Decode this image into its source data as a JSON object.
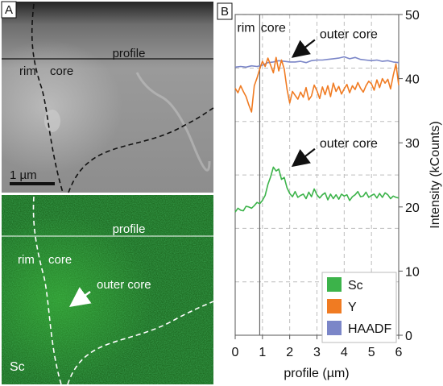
{
  "panel_a": {
    "label": "A",
    "haadf_image": {
      "profile_label": "profile",
      "rim_label": "rim",
      "core_label": "core",
      "scalebar_label": "1 µm"
    },
    "sc_map": {
      "profile_label": "profile",
      "rim_label": "rim",
      "core_label": "core",
      "outer_core_label": "outer core",
      "element_label": "Sc"
    }
  },
  "chart_data": {
    "type": "line",
    "panel_label": "B",
    "xlabel": "profile (µm)",
    "ylabel": "Intensity (kCounts)",
    "xlim": [
      0,
      6
    ],
    "ylim": [
      0,
      50
    ],
    "xticks": [
      0,
      1,
      2,
      3,
      4,
      5,
      6
    ],
    "yticks": [
      0,
      10,
      20,
      30,
      40,
      50
    ],
    "grid": true,
    "legend_position": "bottom-right",
    "annotations": [
      {
        "text": "rim",
        "x": 0.4,
        "y": 47.3
      },
      {
        "text": "core",
        "x": 1.4,
        "y": 47.3
      },
      {
        "text": "outer core",
        "x": 3.1,
        "y": 46.3,
        "arrow_to": [
          2.05,
          43.2
        ]
      },
      {
        "text": "outer core",
        "x": 3.1,
        "y": 29.3,
        "arrow_to": [
          2.05,
          26.2
        ]
      }
    ],
    "rim_core_boundary_x": 0.9,
    "series": [
      {
        "name": "Sc",
        "color": "#3cb34a",
        "x": [
          0,
          0.1,
          0.2,
          0.3,
          0.4,
          0.5,
          0.6,
          0.7,
          0.8,
          0.9,
          1.0,
          1.1,
          1.2,
          1.3,
          1.4,
          1.5,
          1.6,
          1.7,
          1.8,
          1.9,
          2.0,
          2.1,
          2.2,
          2.3,
          2.4,
          2.5,
          2.6,
          2.7,
          2.8,
          2.9,
          3.0,
          3.1,
          3.2,
          3.3,
          3.4,
          3.5,
          3.6,
          3.7,
          3.8,
          3.9,
          4.0,
          4.1,
          4.2,
          4.3,
          4.4,
          4.5,
          4.6,
          4.7,
          4.8,
          4.9,
          5.0,
          5.1,
          5.2,
          5.3,
          5.4,
          5.5,
          5.6,
          5.7,
          5.8,
          5.9,
          6.0
        ],
        "y": [
          19.2,
          19.8,
          19.5,
          19.4,
          20.1,
          20.0,
          19.8,
          20.2,
          20.7,
          20.5,
          21.0,
          21.8,
          23.5,
          24.7,
          26.2,
          25.6,
          25.9,
          24.3,
          24.6,
          23.0,
          22.1,
          21.6,
          22.4,
          21.5,
          21.8,
          22.0,
          21.3,
          22.3,
          21.6,
          22.8,
          21.9,
          21.4,
          21.9,
          22.2,
          21.1,
          22.0,
          21.3,
          21.9,
          21.2,
          22.0,
          21.7,
          21.9,
          21.0,
          21.6,
          21.9,
          22.4,
          21.6,
          21.7,
          22.3,
          21.5,
          21.8,
          22.0,
          21.4,
          22.1,
          21.5,
          22.2,
          21.9,
          21.3,
          21.7,
          21.5,
          21.4
        ]
      },
      {
        "name": "Y",
        "color": "#f07b22",
        "x": [
          0,
          0.1,
          0.2,
          0.3,
          0.4,
          0.5,
          0.6,
          0.7,
          0.8,
          0.9,
          1.0,
          1.1,
          1.2,
          1.3,
          1.4,
          1.5,
          1.6,
          1.7,
          1.8,
          1.9,
          2.0,
          2.1,
          2.2,
          2.3,
          2.4,
          2.5,
          2.6,
          2.7,
          2.8,
          2.9,
          3.0,
          3.1,
          3.2,
          3.3,
          3.4,
          3.5,
          3.6,
          3.7,
          3.8,
          3.9,
          4.0,
          4.1,
          4.2,
          4.3,
          4.4,
          4.5,
          4.6,
          4.7,
          4.8,
          4.9,
          5.0,
          5.1,
          5.2,
          5.3,
          5.4,
          5.5,
          5.6,
          5.7,
          5.8,
          5.9,
          6.0
        ],
        "y": [
          38.5,
          37.8,
          38.9,
          38.0,
          37.2,
          35.9,
          34.8,
          38.9,
          40.1,
          41.5,
          42.7,
          41.9,
          43.2,
          42.1,
          40.9,
          43.3,
          41.2,
          42.9,
          41.5,
          38.4,
          36.2,
          38.0,
          37.4,
          36.8,
          37.9,
          37.1,
          38.6,
          36.7,
          37.3,
          39.0,
          38.1,
          36.9,
          38.7,
          37.5,
          38.9,
          37.2,
          39.3,
          38.0,
          38.8,
          37.6,
          38.4,
          39.1,
          37.8,
          38.9,
          38.3,
          39.4,
          38.5,
          37.9,
          38.9,
          39.6,
          39.2,
          38.2,
          39.8,
          38.6,
          40.0,
          39.3,
          39.9,
          38.4,
          40.5,
          42.3,
          39.0
        ]
      },
      {
        "name": "HAADF",
        "color": "#7b86c8",
        "x": [
          0,
          0.2,
          0.4,
          0.6,
          0.8,
          1.0,
          1.2,
          1.4,
          1.6,
          1.8,
          2.0,
          2.2,
          2.4,
          2.6,
          2.8,
          3.0,
          3.2,
          3.4,
          3.6,
          3.8,
          4.0,
          4.2,
          4.4,
          4.6,
          4.8,
          5.0,
          5.2,
          5.4,
          5.6,
          5.8,
          6.0
        ],
        "y": [
          41.8,
          41.9,
          41.8,
          42.0,
          41.9,
          42.1,
          42.5,
          42.6,
          42.8,
          42.7,
          42.6,
          42.6,
          42.7,
          42.5,
          42.8,
          42.9,
          42.9,
          43.0,
          43.1,
          43.2,
          43.4,
          43.1,
          43.3,
          43.0,
          42.9,
          42.8,
          42.9,
          42.7,
          42.8,
          42.6,
          42.5
        ]
      }
    ]
  }
}
